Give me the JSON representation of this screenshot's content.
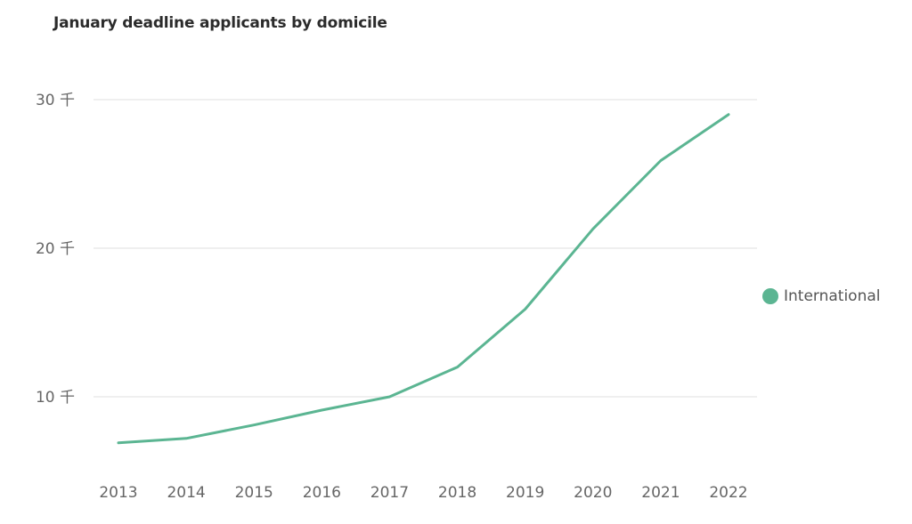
{
  "chart_data": {
    "type": "line",
    "title": "January deadline applicants by domicile",
    "xlabel": "",
    "ylabel": "",
    "categories": [
      "2013",
      "2014",
      "2015",
      "2016",
      "2017",
      "2018",
      "2019",
      "2020",
      "2021",
      "2022"
    ],
    "series": [
      {
        "name": "International",
        "values": [
          6900,
          7200,
          8100,
          9100,
          10000,
          12000,
          15900,
          21300,
          25900,
          29000
        ],
        "color": "#5bb592"
      }
    ],
    "y_ticks": [
      {
        "value": 10000,
        "label": "10 千"
      },
      {
        "value": 20000,
        "label": "20 千"
      },
      {
        "value": 30000,
        "label": "30 千"
      }
    ],
    "ylim": [
      6000,
      30000
    ],
    "grid": true,
    "legend_position": "right"
  }
}
